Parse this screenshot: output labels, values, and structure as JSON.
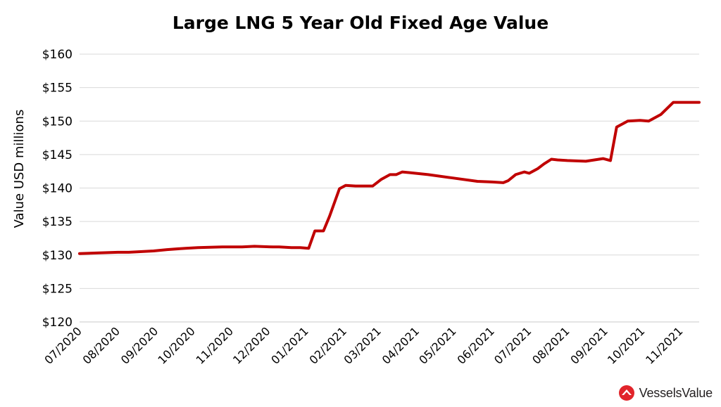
{
  "chart_data": {
    "type": "line",
    "title": "Large LNG 5 Year Old Fixed Age Value",
    "ylabel": "Value USD millions",
    "xlabel": "",
    "ylim": [
      120,
      160
    ],
    "yticks": [
      "$120",
      "$125",
      "$130",
      "$135",
      "$140",
      "$145",
      "$150",
      "$155",
      "$160"
    ],
    "xlim": [
      "2020-07-01",
      "2021-11-16"
    ],
    "xticks": [
      {
        "date": "2020-07-01",
        "label": "07/2020"
      },
      {
        "date": "2020-08-01",
        "label": "08/2020"
      },
      {
        "date": "2020-09-01",
        "label": "09/2020"
      },
      {
        "date": "2020-10-01",
        "label": "10/2020"
      },
      {
        "date": "2020-11-01",
        "label": "11/2020"
      },
      {
        "date": "2020-12-01",
        "label": "12/2020"
      },
      {
        "date": "2021-01-01",
        "label": "01/2021"
      },
      {
        "date": "2021-02-01",
        "label": "02/2021"
      },
      {
        "date": "2021-03-01",
        "label": "03/2021"
      },
      {
        "date": "2021-04-01",
        "label": "04/2021"
      },
      {
        "date": "2021-05-01",
        "label": "05/2021"
      },
      {
        "date": "2021-06-01",
        "label": "06/2021"
      },
      {
        "date": "2021-07-01",
        "label": "07/2021"
      },
      {
        "date": "2021-08-01",
        "label": "08/2021"
      },
      {
        "date": "2021-09-01",
        "label": "09/2021"
      },
      {
        "date": "2021-10-01",
        "label": "10/2021"
      },
      {
        "date": "2021-11-01",
        "label": "11/2021"
      }
    ],
    "grid": true,
    "series": [
      {
        "color": "#c00000",
        "x": [
          "2020-07-01",
          "2020-07-15",
          "2020-08-01",
          "2020-08-10",
          "2020-08-30",
          "2020-09-10",
          "2020-09-25",
          "2020-10-05",
          "2020-10-25",
          "2020-11-10",
          "2020-11-20",
          "2020-12-05",
          "2020-12-10",
          "2020-12-20",
          "2020-12-27",
          "2021-01-03",
          "2021-01-08",
          "2021-01-10",
          "2021-01-15",
          "2021-01-20",
          "2021-01-28",
          "2021-02-02",
          "2021-02-10",
          "2021-02-24",
          "2021-03-03",
          "2021-03-10",
          "2021-03-15",
          "2021-03-20",
          "2021-03-26",
          "2021-04-10",
          "2021-04-30",
          "2021-05-20",
          "2021-06-01",
          "2021-06-10",
          "2021-06-14",
          "2021-06-20",
          "2021-06-27",
          "2021-07-01",
          "2021-07-08",
          "2021-07-13",
          "2021-07-19",
          "2021-07-24",
          "2021-08-01",
          "2021-08-16",
          "2021-08-30",
          "2021-09-05",
          "2021-09-10",
          "2021-09-19",
          "2021-09-29",
          "2021-10-06",
          "2021-10-16",
          "2021-10-26",
          "2021-10-28",
          "2021-11-03",
          "2021-11-16"
        ],
        "y": [
          130.2,
          130.3,
          130.4,
          130.4,
          130.6,
          130.8,
          131.0,
          131.1,
          131.2,
          131.2,
          131.3,
          131.2,
          131.2,
          131.1,
          131.1,
          131.0,
          133.6,
          133.6,
          133.6,
          135.8,
          139.9,
          140.4,
          140.3,
          140.3,
          141.3,
          142.0,
          142.0,
          142.4,
          142.3,
          142.0,
          141.5,
          141.0,
          140.9,
          140.8,
          141.1,
          142.0,
          142.4,
          142.2,
          142.9,
          143.6,
          144.3,
          144.2,
          144.1,
          144.0,
          144.4,
          144.1,
          149.1,
          150.0,
          150.1,
          150.0,
          151.0,
          152.8,
          152.8,
          152.8,
          152.8
        ]
      }
    ]
  },
  "brand": {
    "name": "VesselsValue",
    "color": "#e1242b",
    "icon": "vesselsvalue-logo-icon"
  }
}
